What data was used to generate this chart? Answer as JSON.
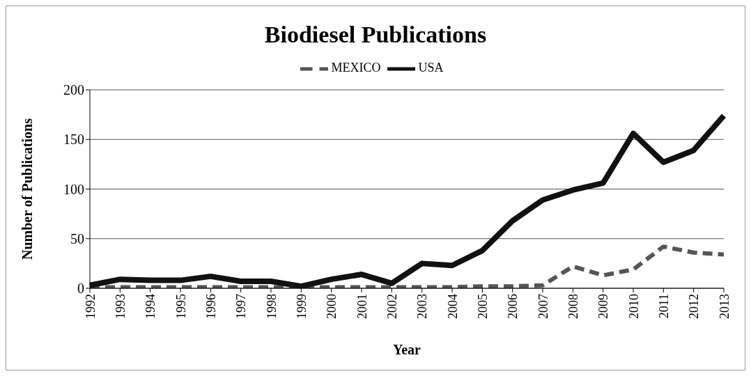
{
  "chart_data": {
    "type": "line",
    "title": "Biodiesel Publications",
    "xlabel": "Year",
    "ylabel": "Number of Publications",
    "categories": [
      "1992",
      "1993",
      "1994",
      "1995",
      "1996",
      "1997",
      "1998",
      "1999",
      "2000",
      "2001",
      "2002",
      "2003",
      "2004",
      "2005",
      "2006",
      "2007",
      "2008",
      "2009",
      "2010",
      "2011",
      "2012",
      "2013"
    ],
    "series": [
      {
        "name": "MEXICO",
        "color": "#555555",
        "line_style": "dashed",
        "values": [
          1,
          1,
          1,
          1,
          1,
          1,
          1,
          1,
          1,
          1,
          1,
          1,
          1,
          2,
          2,
          3,
          22,
          13,
          19,
          42,
          36,
          34
        ]
      },
      {
        "name": "USA",
        "color": "#111111",
        "line_style": "solid",
        "values": [
          3,
          9,
          8,
          8,
          12,
          7,
          7,
          2,
          9,
          14,
          5,
          25,
          23,
          38,
          68,
          89,
          99,
          106,
          156,
          127,
          139,
          174
        ]
      }
    ],
    "ylim": [
      0,
      200
    ],
    "yticks": [
      0,
      50,
      100,
      150,
      200
    ],
    "grid": "y",
    "legend": "top",
    "marker": "none"
  }
}
